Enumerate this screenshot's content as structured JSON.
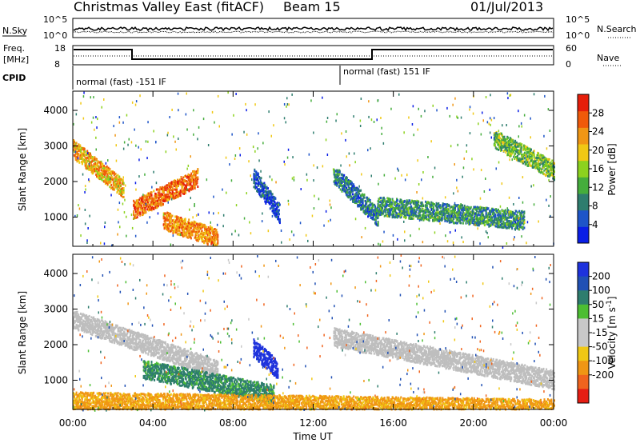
{
  "header": {
    "title": "Christmas Valley East (fitACF)",
    "beam": "Beam 15",
    "date": "01/Jul/2013"
  },
  "panel_labels": {
    "nsky": "N.Sky",
    "nsearch": "N.Search",
    "freq": "Freq.",
    "freq_unit": "[MHz]",
    "nave": "Nave",
    "cpid": "CPID",
    "cpid_mode_1": "normal (fast) -151 IF",
    "cpid_mode_2": "normal (fast) 151 IF"
  },
  "noise_ticks_left": [
    "10^5",
    "10^0"
  ],
  "noise_ticks_right": [
    "10^5",
    "10^0"
  ],
  "freq_ticks_left": [
    "18",
    "8"
  ],
  "nave_ticks_right": [
    "60",
    "0"
  ],
  "colors": {
    "frame": "#000000",
    "no_data_background": "#ffffff",
    "ground_scatter": "#bebebe",
    "power_scale": [
      "#0a1ee6",
      "#1e55c8",
      "#2e7d6e",
      "#45ad3c",
      "#8cd21e",
      "#f0c814",
      "#f09614",
      "#f05a0a",
      "#e61e0a"
    ],
    "velocity_scale": [
      "#1e32dc",
      "#2050b4",
      "#2e7d6e",
      "#4cbe32",
      "#c8c8c8",
      "#c8c8c8",
      "#f0c814",
      "#f09614",
      "#f0641e",
      "#e61e14"
    ]
  },
  "chart_data": [
    {
      "type": "heatmap",
      "name": "Power",
      "xlabel": "Time UT",
      "ylabel": "Slant Range [km]",
      "x_ticks": [
        "00:00",
        "04:00",
        "08:00",
        "12:00",
        "16:00",
        "20:00",
        "00:00"
      ],
      "x_range_hours": [
        0,
        24
      ],
      "y_ticks": [
        1000,
        2000,
        3000,
        4000
      ],
      "ylim": [
        180,
        4540
      ],
      "colorbar_label": "Power [dB]",
      "colorbar_ticks": [
        4,
        8,
        12,
        16,
        20,
        24,
        28
      ],
      "colorbar_range": [
        0,
        32
      ],
      "features": [
        {
          "t_start": 0.0,
          "t_end": 2.5,
          "range_start": 2900,
          "range_end": 1800,
          "value_db": 22
        },
        {
          "t_start": 3.0,
          "t_end": 6.2,
          "range_start": 1200,
          "range_end": 2100,
          "value_db": 26
        },
        {
          "t_start": 4.5,
          "t_end": 7.2,
          "range_start": 900,
          "range_end": 400,
          "value_db": 24
        },
        {
          "t_start": 9.0,
          "t_end": 10.3,
          "range_start": 2100,
          "range_end": 1100,
          "value_db": 4
        },
        {
          "t_start": 13.0,
          "t_end": 15.2,
          "range_start": 2200,
          "range_end": 1000,
          "value_db": 8
        },
        {
          "t_start": 15.2,
          "t_end": 22.5,
          "range_start": 1300,
          "range_end": 900,
          "value_db": 10
        },
        {
          "t_start": 21.0,
          "t_end": 24.0,
          "range_start": 3200,
          "range_end": 2300,
          "value_db": 14
        }
      ]
    },
    {
      "type": "heatmap",
      "name": "Velocity",
      "xlabel": "Time UT",
      "ylabel": "Slant Range [km]",
      "x_ticks": [
        "00:00",
        "04:00",
        "08:00",
        "12:00",
        "16:00",
        "20:00",
        "00:00"
      ],
      "x_range_hours": [
        0,
        24
      ],
      "y_ticks": [
        1000,
        2000,
        3000,
        4000
      ],
      "ylim": [
        180,
        4540
      ],
      "colorbar_label": "Velocity [m s^-1]",
      "colorbar_ticks": [
        200,
        100,
        50,
        15,
        -15,
        -50,
        -100,
        -200
      ],
      "colorbar_range": [
        -250,
        250
      ],
      "features": [
        {
          "t_start": 0.0,
          "t_end": 7.2,
          "range_start": 2700,
          "range_end": 1300,
          "value_ms": 0,
          "ground_scatter": true
        },
        {
          "t_start": 3.5,
          "t_end": 10.0,
          "range_start": 1300,
          "range_end": 600,
          "value_ms": 60
        },
        {
          "t_start": 9.0,
          "t_end": 10.2,
          "range_start": 1900,
          "range_end": 1300,
          "value_ms": 220
        },
        {
          "t_start": 13.0,
          "t_end": 24.0,
          "range_start": 2200,
          "range_end": 1000,
          "value_ms": 0,
          "ground_scatter": true
        },
        {
          "t_start": 0.0,
          "t_end": 24.0,
          "range_start": 400,
          "range_end": 200,
          "value_ms": -60
        }
      ]
    }
  ]
}
